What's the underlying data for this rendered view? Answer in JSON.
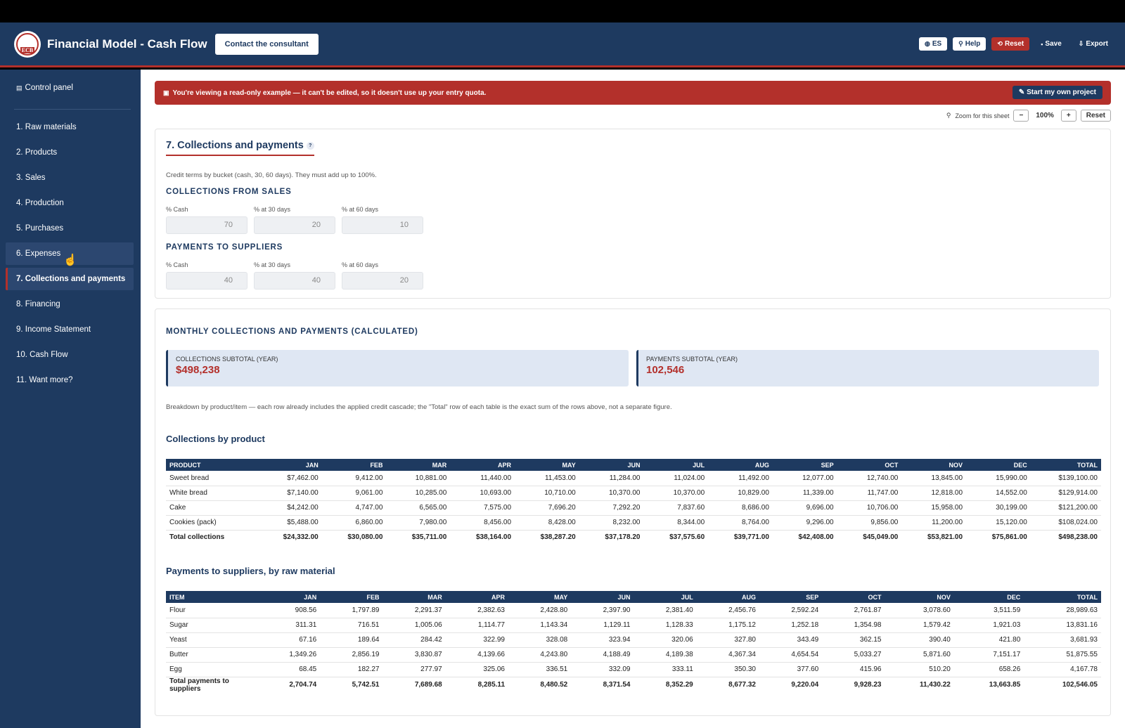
{
  "header": {
    "logo_text": "ECB",
    "title": "Financial Model - Cash Flow",
    "consult_label": "Contact the consultant",
    "buttons": {
      "lang": "ES",
      "help": "Help",
      "reset": "Reset",
      "save": "Save",
      "export": "Export"
    }
  },
  "sidebar": {
    "control_panel": "Control panel",
    "items": [
      {
        "label": "1. Raw materials"
      },
      {
        "label": "2. Products"
      },
      {
        "label": "3. Sales"
      },
      {
        "label": "4. Production"
      },
      {
        "label": "5. Purchases"
      },
      {
        "label": "6. Expenses"
      },
      {
        "label": "7. Collections and payments"
      },
      {
        "label": "8. Financing"
      },
      {
        "label": "9. Income Statement"
      },
      {
        "label": "10. Cash Flow"
      },
      {
        "label": "11. Want more?"
      }
    ],
    "active_index": 6,
    "hover_index": 5
  },
  "banner": {
    "text": "You're viewing a read-only example — it can't be edited, so it doesn't use up your entry quota.",
    "button": "Start my own project"
  },
  "zoom": {
    "label": "Zoom for this sheet",
    "minus": "−",
    "value": "100%",
    "plus": "+",
    "reset": "Reset"
  },
  "section": {
    "title": "7. Collections and payments",
    "help": "?",
    "note": "Credit terms by bucket (cash, 30, 60 days). They must add up to 100%.",
    "collections": {
      "heading": "COLLECTIONS FROM SALES",
      "labels": [
        "% Cash",
        "% at 30 days",
        "% at 60 days"
      ],
      "values": [
        "70",
        "20",
        "10"
      ]
    },
    "payments": {
      "heading": "PAYMENTS TO SUPPLIERS",
      "labels": [
        "% Cash",
        "% at 30 days",
        "% at 60 days"
      ],
      "values": [
        "40",
        "40",
        "20"
      ]
    }
  },
  "calc": {
    "heading": "MONTHLY COLLECTIONS AND PAYMENTS (CALCULATED)",
    "kpi_collections_label": "COLLECTIONS SUBTOTAL (YEAR)",
    "kpi_collections_value": "$498,238",
    "kpi_payments_label": "PAYMENTS SUBTOTAL (YEAR)",
    "kpi_payments_value": "102,546",
    "note": "Breakdown by product/item — each row already includes the applied credit cascade; the \"Total\" row of each table is the exact sum of the rows above, not a separate figure."
  },
  "collections_table": {
    "title": "Collections by product",
    "headers": [
      "PRODUCT",
      "JAN",
      "FEB",
      "MAR",
      "APR",
      "MAY",
      "JUN",
      "JUL",
      "AUG",
      "SEP",
      "OCT",
      "NOV",
      "DEC",
      "TOTAL"
    ],
    "rows": [
      [
        "Sweet bread",
        "$7,462.00",
        "9,412.00",
        "10,881.00",
        "11,440.00",
        "11,453.00",
        "11,284.00",
        "11,024.00",
        "11,492.00",
        "12,077.00",
        "12,740.00",
        "13,845.00",
        "15,990.00",
        "$139,100.00"
      ],
      [
        "White bread",
        "$7,140.00",
        "9,061.00",
        "10,285.00",
        "10,693.00",
        "10,710.00",
        "10,370.00",
        "10,370.00",
        "10,829.00",
        "11,339.00",
        "11,747.00",
        "12,818.00",
        "14,552.00",
        "$129,914.00"
      ],
      [
        "Cake",
        "$4,242.00",
        "4,747.00",
        "6,565.00",
        "7,575.00",
        "7,696.20",
        "7,292.20",
        "7,837.60",
        "8,686.00",
        "9,696.00",
        "10,706.00",
        "15,958.00",
        "30,199.00",
        "$121,200.00"
      ],
      [
        "Cookies (pack)",
        "$5,488.00",
        "6,860.00",
        "7,980.00",
        "8,456.00",
        "8,428.00",
        "8,232.00",
        "8,344.00",
        "8,764.00",
        "9,296.00",
        "9,856.00",
        "11,200.00",
        "15,120.00",
        "$108,024.00"
      ]
    ],
    "total": [
      "Total collections",
      "$24,332.00",
      "$30,080.00",
      "$35,711.00",
      "$38,164.00",
      "$38,287.20",
      "$37,178.20",
      "$37,575.60",
      "$39,771.00",
      "$42,408.00",
      "$45,049.00",
      "$53,821.00",
      "$75,861.00",
      "$498,238.00"
    ]
  },
  "payments_table": {
    "title": "Payments to suppliers, by raw material",
    "headers": [
      "ITEM",
      "JAN",
      "FEB",
      "MAR",
      "APR",
      "MAY",
      "JUN",
      "JUL",
      "AUG",
      "SEP",
      "OCT",
      "NOV",
      "DEC",
      "TOTAL"
    ],
    "rows": [
      [
        "Flour",
        "908.56",
        "1,797.89",
        "2,291.37",
        "2,382.63",
        "2,428.80",
        "2,397.90",
        "2,381.40",
        "2,456.76",
        "2,592.24",
        "2,761.87",
        "3,078.60",
        "3,511.59",
        "28,989.63"
      ],
      [
        "Sugar",
        "311.31",
        "716.51",
        "1,005.06",
        "1,114.77",
        "1,143.34",
        "1,129.11",
        "1,128.33",
        "1,175.12",
        "1,252.18",
        "1,354.98",
        "1,579.42",
        "1,921.03",
        "13,831.16"
      ],
      [
        "Yeast",
        "67.16",
        "189.64",
        "284.42",
        "322.99",
        "328.08",
        "323.94",
        "320.06",
        "327.80",
        "343.49",
        "362.15",
        "390.40",
        "421.80",
        "3,681.93"
      ],
      [
        "Butter",
        "1,349.26",
        "2,856.19",
        "3,830.87",
        "4,139.66",
        "4,243.80",
        "4,188.49",
        "4,189.38",
        "4,367.34",
        "4,654.54",
        "5,033.27",
        "5,871.60",
        "7,151.17",
        "51,875.55"
      ],
      [
        "Egg",
        "68.45",
        "182.27",
        "277.97",
        "325.06",
        "336.51",
        "332.09",
        "333.11",
        "350.30",
        "377.60",
        "415.96",
        "510.20",
        "658.26",
        "4,167.78"
      ]
    ],
    "total": [
      "Total payments to suppliers",
      "2,704.74",
      "5,742.51",
      "7,689.68",
      "8,285.11",
      "8,480.52",
      "8,371.54",
      "8,352.29",
      "8,677.32",
      "9,220.04",
      "9,928.23",
      "11,430.22",
      "13,663.85",
      "102,546.05"
    ]
  }
}
